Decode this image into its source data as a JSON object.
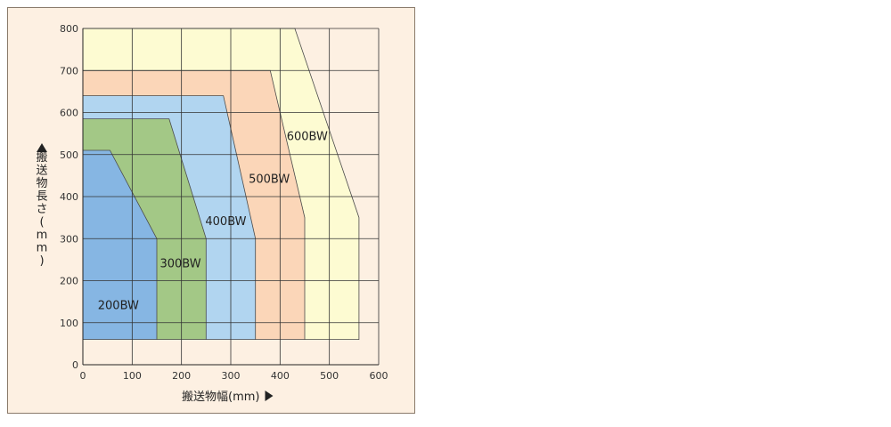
{
  "chart_data": {
    "type": "area",
    "xlabel": "搬送物幅(mm)",
    "ylabel": "搬送物長さ(mm)",
    "xlim": [
      0,
      600
    ],
    "ylim": [
      0,
      800
    ],
    "x_ticks": [
      0,
      100,
      200,
      300,
      400,
      500,
      600
    ],
    "y_ticks": [
      0,
      100,
      200,
      300,
      400,
      500,
      600,
      700,
      800
    ],
    "grid": true,
    "series": [
      {
        "name": "600BW",
        "color": "#fdfbd2",
        "outline": [
          [
            0,
            60
          ],
          [
            0,
            800
          ],
          [
            430,
            800
          ],
          [
            560,
            350
          ],
          [
            560,
            60
          ]
        ]
      },
      {
        "name": "500BW",
        "color": "#fbd6b8",
        "outline": [
          [
            0,
            60
          ],
          [
            0,
            700
          ],
          [
            380,
            700
          ],
          [
            450,
            350
          ],
          [
            450,
            60
          ]
        ]
      },
      {
        "name": "400BW",
        "color": "#b1d5f0",
        "outline": [
          [
            0,
            60
          ],
          [
            0,
            640
          ],
          [
            285,
            640
          ],
          [
            350,
            300
          ],
          [
            350,
            60
          ]
        ]
      },
      {
        "name": "300BW",
        "color": "#a3c886",
        "outline": [
          [
            0,
            60
          ],
          [
            0,
            585
          ],
          [
            175,
            585
          ],
          [
            250,
            300
          ],
          [
            250,
            60
          ]
        ]
      },
      {
        "name": "200BW",
        "color": "#86b6e3",
        "outline": [
          [
            0,
            60
          ],
          [
            0,
            510
          ],
          [
            55,
            510
          ],
          [
            150,
            300
          ],
          [
            150,
            60
          ]
        ]
      }
    ],
    "labels": [
      {
        "text": "600BW",
        "x": 455,
        "y": 545
      },
      {
        "text": "500BW",
        "x": 378,
        "y": 443
      },
      {
        "text": "400BW",
        "x": 290,
        "y": 343
      },
      {
        "text": "300BW",
        "x": 198,
        "y": 242
      },
      {
        "text": "200BW",
        "x": 72,
        "y": 143
      }
    ]
  }
}
